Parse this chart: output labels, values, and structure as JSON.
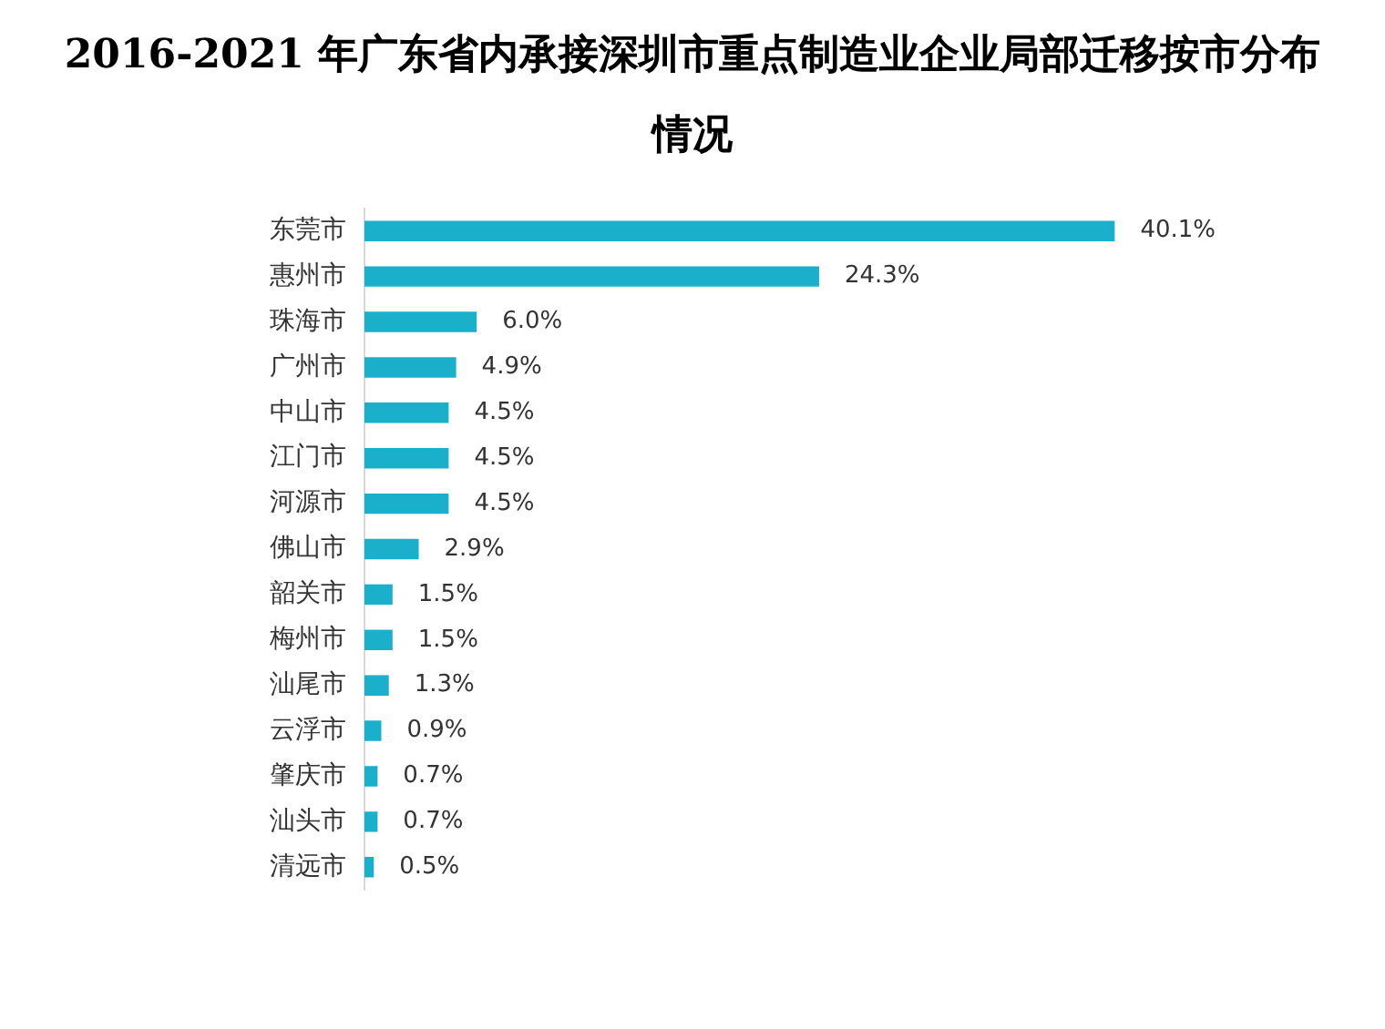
{
  "chart_data": {
    "type": "bar",
    "orientation": "horizontal",
    "title": "2016-2021 年广东省内承接深圳市重点制造业企业局部迁移按市分布情况",
    "categories": [
      "东莞市",
      "惠州市",
      "珠海市",
      "广州市",
      "中山市",
      "江门市",
      "河源市",
      "佛山市",
      "韶关市",
      "梅州市",
      "汕尾市",
      "云浮市",
      "肇庆市",
      "汕头市",
      "清远市"
    ],
    "values": [
      40.1,
      24.3,
      6.0,
      4.9,
      4.5,
      4.5,
      4.5,
      2.9,
      1.5,
      1.5,
      1.3,
      0.9,
      0.7,
      0.7,
      0.5
    ],
    "value_labels": [
      "40.1%",
      "24.3%",
      "6.0%",
      "4.9%",
      "4.5%",
      "4.5%",
      "4.5%",
      "2.9%",
      "1.5%",
      "1.5%",
      "1.3%",
      "0.9%",
      "0.7%",
      "0.7%",
      "0.5%"
    ],
    "color": "#1ab0cc"
  }
}
